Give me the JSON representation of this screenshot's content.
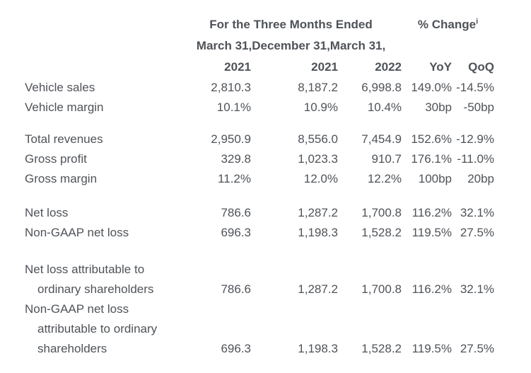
{
  "meta": {
    "background_color": "#ffffff",
    "text_color": "#4f5358"
  },
  "table": {
    "header": {
      "period_title": "For the Three Months Ended",
      "change_title": "% Change",
      "change_footnote": "i",
      "dates_line": "March 31,December 31,March 31,",
      "years": [
        "2021",
        "2021",
        "2022"
      ],
      "change_cols": [
        "YoY",
        "QoQ"
      ]
    },
    "groups": [
      {
        "rows": [
          {
            "label_lines": [
              "Vehicle sales"
            ],
            "values": [
              "2,810.3",
              "8,187.2",
              "6,998.8",
              "149.0%",
              "-14.5%"
            ]
          },
          {
            "label_lines": [
              "Vehicle margin"
            ],
            "values": [
              "10.1%",
              "10.9%",
              "10.4%",
              "30bp",
              "-50bp"
            ]
          }
        ]
      },
      {
        "rows": [
          {
            "label_lines": [
              "Total revenues"
            ],
            "values": [
              "2,950.9",
              "8,556.0",
              "7,454.9",
              "152.6%",
              "-12.9%"
            ]
          },
          {
            "label_lines": [
              "Gross profit"
            ],
            "values": [
              "329.8",
              "1,023.3",
              "910.7",
              "176.1%",
              "-11.0%"
            ]
          },
          {
            "label_lines": [
              "Gross margin"
            ],
            "values": [
              "11.2%",
              "12.0%",
              "12.2%",
              "100bp",
              "20bp"
            ]
          }
        ]
      },
      {
        "rows": [
          {
            "label_lines": [
              "Net loss"
            ],
            "values": [
              "786.6",
              "1,287.2",
              "1,700.8",
              "116.2%",
              "32.1%"
            ]
          },
          {
            "label_lines": [
              "Non-GAAP net loss"
            ],
            "values": [
              "696.3",
              "1,198.3",
              "1,528.2",
              "119.5%",
              "27.5%"
            ]
          }
        ]
      },
      {
        "rows": [
          {
            "label_lines": [
              "Net loss attributable to",
              "ordinary shareholders"
            ],
            "values": [
              "786.6",
              "1,287.2",
              "1,700.8",
              "116.2%",
              "32.1%"
            ]
          },
          {
            "label_lines": [
              "Non-GAAP net loss",
              "attributable to ordinary",
              "shareholders"
            ],
            "values": [
              "696.3",
              "1,198.3",
              "1,528.2",
              "119.5%",
              "27.5%"
            ]
          }
        ]
      }
    ]
  }
}
